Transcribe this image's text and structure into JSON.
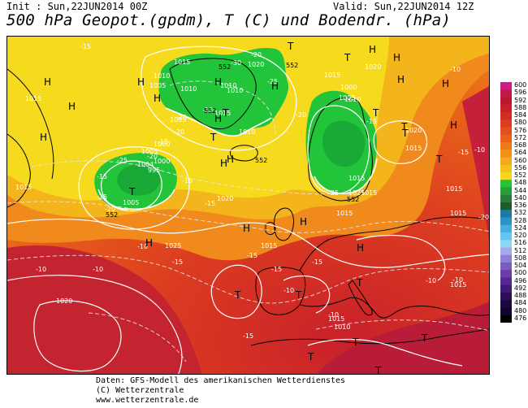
{
  "header": {
    "init": "Init : Sun,22JUN2014 00Z",
    "valid": "Valid: Sun,22JUN2014 12Z",
    "title": "500 hPa Geopot.(gpdm), T (C) und Bodendr. (hPa)"
  },
  "colors": {
    "green_low": "#22c43a",
    "yellow": "#f6e21d",
    "orange": "#f39a1d",
    "red_orange": "#e2521a",
    "red": "#c8202a",
    "dark_red": "#9c1a48",
    "contour": "#ffffff",
    "coastline": "#000000"
  },
  "colorbar": {
    "labels": [
      "600",
      "596",
      "592",
      "588",
      "584",
      "580",
      "576",
      "572",
      "568",
      "564",
      "560",
      "556",
      "552",
      "548",
      "544",
      "540",
      "536",
      "532",
      "528",
      "524",
      "520",
      "516",
      "512",
      "508",
      "504",
      "500",
      "496",
      "492",
      "488",
      "484",
      "480",
      "476"
    ],
    "colors": [
      "#d01a86",
      "#c4184a",
      "#b81a2c",
      "#c8202a",
      "#d22c24",
      "#dc3c20",
      "#e24e1c",
      "#e8621a",
      "#ee7a1a",
      "#f2901a",
      "#f4a81c",
      "#f6c01c",
      "#f6d61e",
      "#22c43a",
      "#2a9c3a",
      "#2a7c3a",
      "#1e5c2e",
      "#1c7ca0",
      "#2a94c8",
      "#46aee0",
      "#64c6ee",
      "#8ad8f4",
      "#a8a8e8",
      "#9080d4",
      "#7c5cc0",
      "#6a3cac",
      "#562890",
      "#401a74",
      "#2a1058",
      "#1c0840",
      "#120430",
      "#000000"
    ]
  },
  "pressure_labels": [
    {
      "t": "1015"
    },
    {
      "t": "1015"
    },
    {
      "t": "1010"
    },
    {
      "t": "1005"
    },
    {
      "t": "1010"
    },
    {
      "t": "1020"
    },
    {
      "t": "1010"
    },
    {
      "t": "1010"
    },
    {
      "t": "1015"
    },
    {
      "t": "1005"
    },
    {
      "t": "1010"
    },
    {
      "t": "1000"
    },
    {
      "t": "1005"
    },
    {
      "t": "995"
    },
    {
      "t": "1000"
    },
    {
      "t": "1004"
    },
    {
      "t": "1005"
    },
    {
      "t": "1015"
    },
    {
      "t": "1020"
    },
    {
      "t": "1015"
    },
    {
      "t": "1020"
    },
    {
      "t": "1025"
    },
    {
      "t": "1015"
    },
    {
      "t": "1015"
    },
    {
      "t": "1015"
    },
    {
      "t": "1025"
    },
    {
      "t": "1015"
    },
    {
      "t": "1015"
    },
    {
      "t": "1020"
    },
    {
      "t": "1010"
    },
    {
      "t": "1005"
    },
    {
      "t": "1000"
    },
    {
      "t": "1015"
    },
    {
      "t": "1015"
    },
    {
      "t": "1015"
    },
    {
      "t": "1020"
    },
    {
      "t": "1015"
    },
    {
      "t": "1010"
    }
  ],
  "temp_labels": [
    {
      "t": "-15"
    },
    {
      "t": "-20"
    },
    {
      "t": "-25"
    },
    {
      "t": "-30"
    },
    {
      "t": "-25"
    },
    {
      "t": "-20"
    },
    {
      "t": "-15"
    },
    {
      "t": "-25"
    },
    {
      "t": "-20"
    },
    {
      "t": "-15"
    },
    {
      "t": "-25"
    },
    {
      "t": "-20"
    },
    {
      "t": "-15"
    },
    {
      "t": "-15"
    },
    {
      "t": "-20"
    },
    {
      "t": "-15"
    },
    {
      "t": "-10"
    },
    {
      "t": "-10"
    },
    {
      "t": "-15"
    },
    {
      "t": "-15"
    },
    {
      "t": "-15"
    },
    {
      "t": "-15"
    },
    {
      "t": "-10"
    },
    {
      "t": "-10"
    },
    {
      "t": "-10"
    },
    {
      "t": "-10"
    },
    {
      "t": "-10"
    },
    {
      "t": "-15"
    },
    {
      "t": "-10"
    },
    {
      "t": "-10"
    },
    {
      "t": "-10"
    },
    {
      "t": "-15"
    },
    {
      "t": "-20"
    },
    {
      "t": "-25"
    }
  ],
  "geopot_labels": [
    {
      "t": "552"
    },
    {
      "t": "552"
    },
    {
      "t": "552"
    },
    {
      "t": "552"
    },
    {
      "t": "552"
    },
    {
      "t": "552"
    }
  ],
  "highs": [
    {
      "t": "H"
    },
    {
      "t": "H"
    },
    {
      "t": "H"
    },
    {
      "t": "H"
    },
    {
      "t": "H"
    },
    {
      "t": "H"
    },
    {
      "t": "H"
    },
    {
      "t": "H"
    },
    {
      "t": "H"
    },
    {
      "t": "H"
    },
    {
      "t": "H"
    },
    {
      "t": "H"
    },
    {
      "t": "H"
    },
    {
      "t": "H"
    },
    {
      "t": "H"
    },
    {
      "t": "H"
    },
    {
      "t": "H"
    },
    {
      "t": "H"
    },
    {
      "t": "H"
    }
  ],
  "lows": [
    {
      "t": "T"
    },
    {
      "t": "T"
    },
    {
      "t": "T"
    },
    {
      "t": "T"
    },
    {
      "t": "T"
    },
    {
      "t": "T"
    },
    {
      "t": "T"
    },
    {
      "t": "T"
    },
    {
      "t": "T"
    },
    {
      "t": "T"
    },
    {
      "t": "T"
    },
    {
      "t": "T"
    },
    {
      "t": "T"
    },
    {
      "t": "T"
    },
    {
      "t": "T"
    },
    {
      "t": "T"
    }
  ],
  "footer": {
    "line1": "Daten: GFS-Modell des amerikanischen Wetterdienstes",
    "line2": "(C) Wetterzentrale",
    "line3": "www.wetterzentrale.de"
  }
}
